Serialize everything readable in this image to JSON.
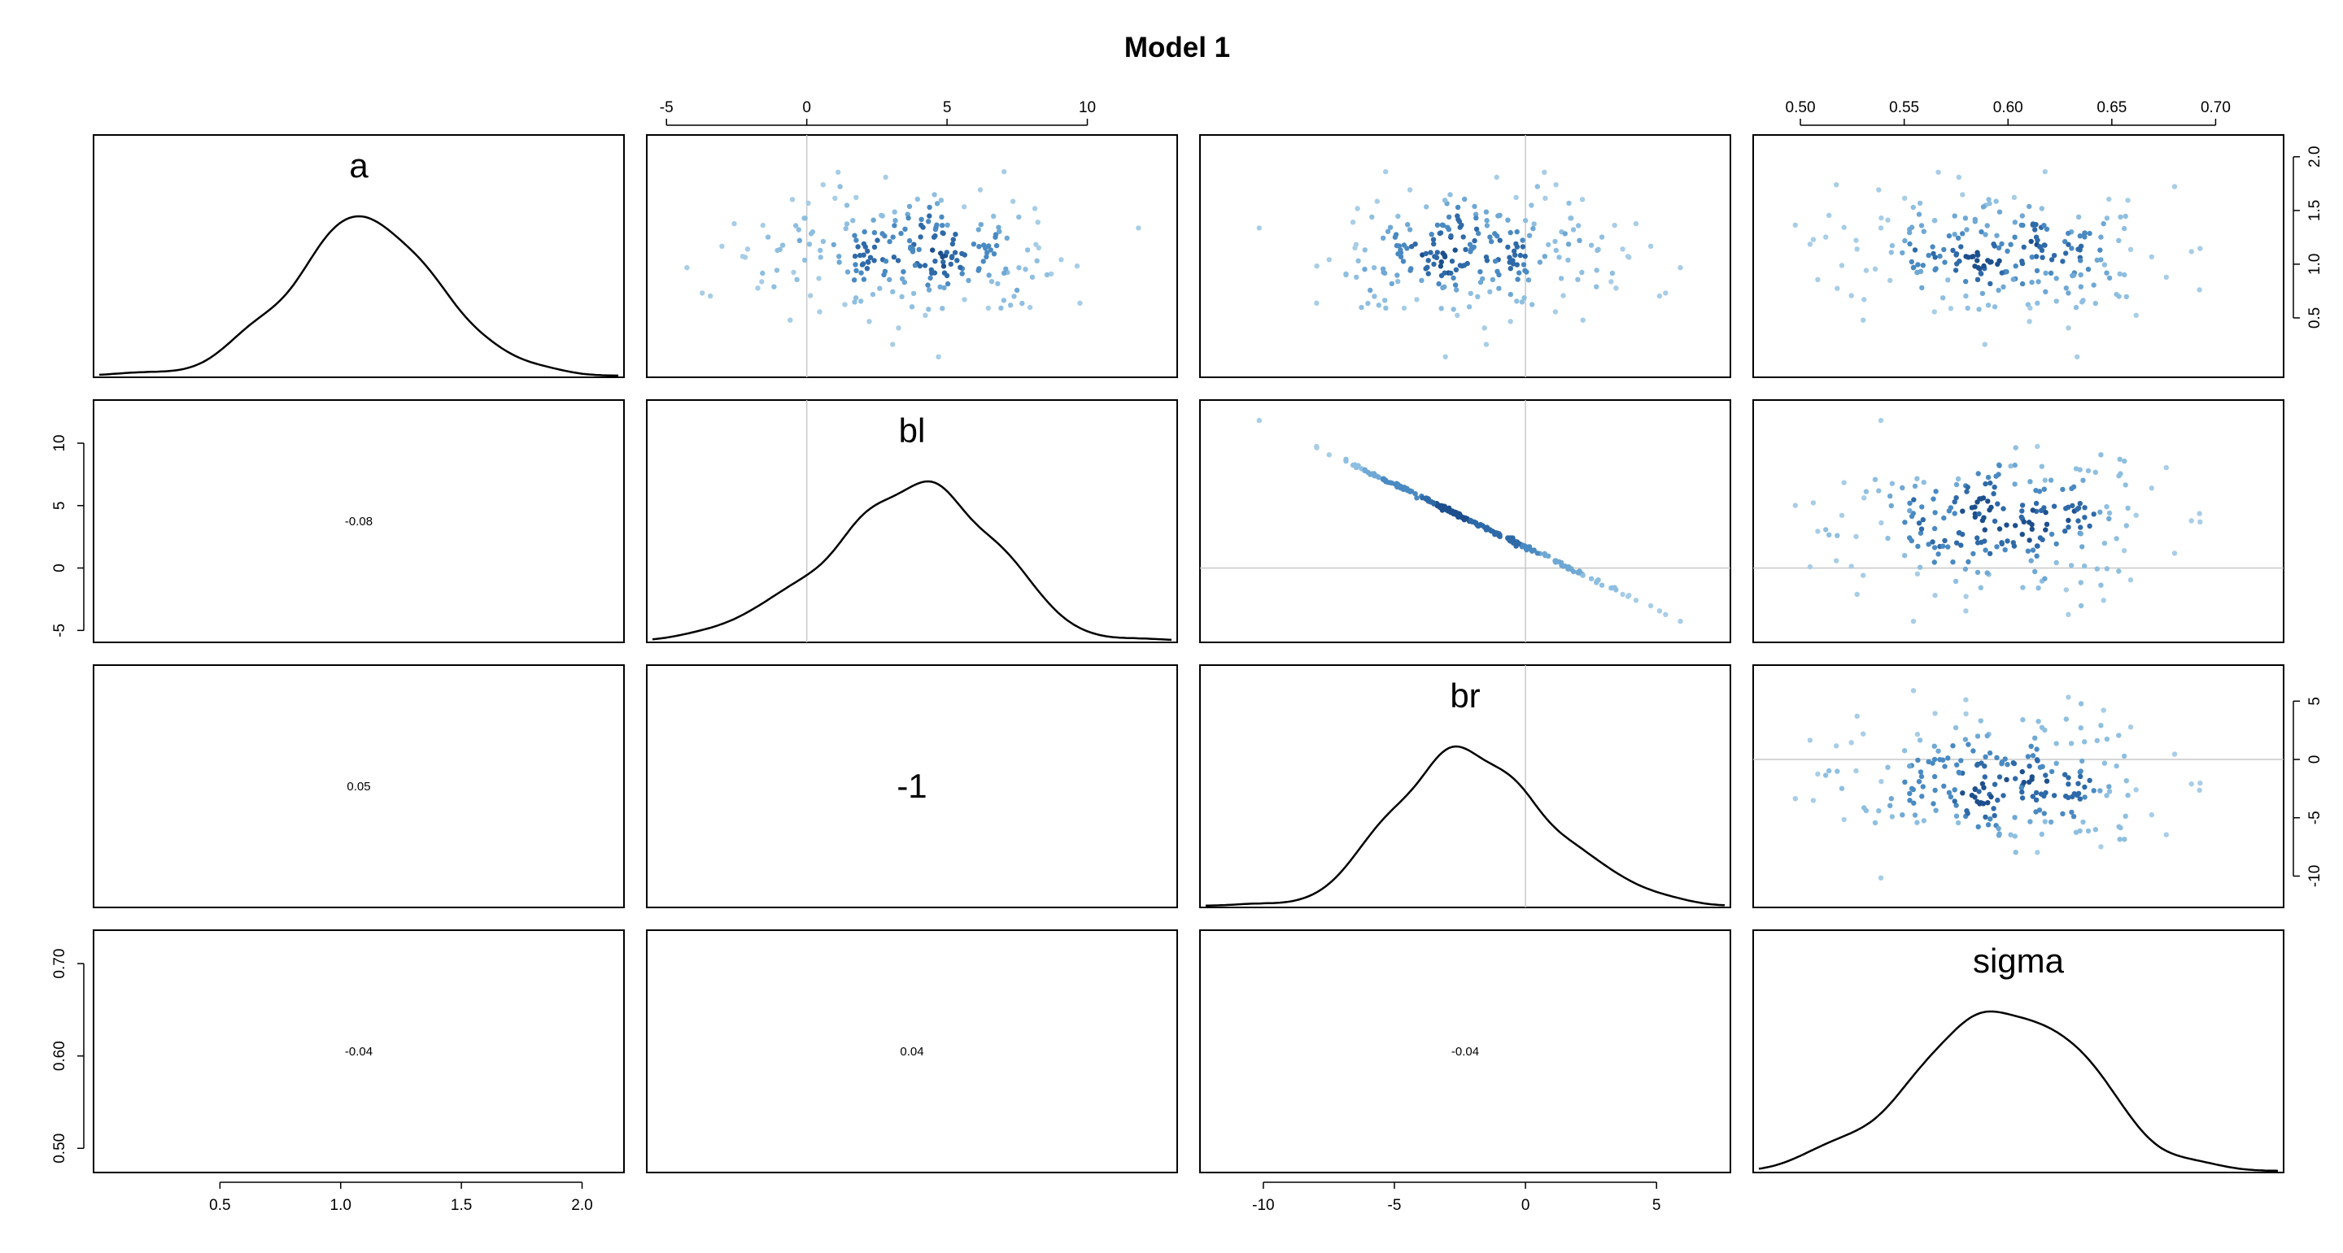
{
  "chart_data": {
    "type": "scatter",
    "title": "Model 1",
    "variables": [
      {
        "name": "a",
        "range": [
          0.0,
          2.15
        ],
        "ticks": [
          0.5,
          1.0,
          1.5,
          2.0
        ],
        "tick_labels": [
          "0.5",
          "1.0",
          "1.5",
          "2.0"
        ],
        "ref_line": null,
        "mean": 1.1,
        "sd": 0.29
      },
      {
        "name": "bl",
        "range": [
          -5.5,
          13.0
        ],
        "ticks": [
          -5,
          0,
          5,
          10
        ],
        "tick_labels": [
          "-5",
          "0",
          "5",
          "10"
        ],
        "ref_line": 0,
        "mean": 3.9,
        "sd": 2.6
      },
      {
        "name": "br",
        "range": [
          -12.2,
          7.6
        ],
        "ticks": [
          -10,
          -5,
          0,
          5
        ],
        "tick_labels": [
          "-10",
          "-5",
          "0",
          "5"
        ],
        "ref_line": 0,
        "mean": -2.2,
        "sd": 2.6
      },
      {
        "name": "sigma",
        "range": [
          0.48,
          0.73
        ],
        "ticks": [
          0.5,
          0.55,
          0.6,
          0.65,
          0.7
        ],
        "tick_labels": [
          "0.50",
          "0.55",
          "0.60",
          "0.65",
          "0.70"
        ],
        "ref_line": null,
        "mean": 0.597,
        "sd": 0.038
      }
    ],
    "y_tick_labels": {
      "a": [
        "0.5",
        "1.0",
        "1.5",
        "2.0"
      ],
      "bl": [
        "-5",
        "0",
        "5",
        "10"
      ],
      "br": [
        "-10",
        "-5",
        "0",
        "5"
      ],
      "sigma": [
        "0.50",
        "0.60",
        "0.70"
      ]
    },
    "sigma_y_ticks": [
      0.5,
      0.6,
      0.7
    ],
    "correlations": [
      {
        "row": 1,
        "col": 0,
        "text": "-0.08"
      },
      {
        "row": 2,
        "col": 0,
        "text": "0.05"
      },
      {
        "row": 2,
        "col": 1,
        "text": "-1"
      },
      {
        "row": 3,
        "col": 0,
        "text": "-0.04"
      },
      {
        "row": 3,
        "col": 1,
        "text": "0.04"
      },
      {
        "row": 3,
        "col": 2,
        "text": "-0.04"
      }
    ],
    "n_samples": 240,
    "point_colors": [
      "#a8cde6",
      "#8fbfe0",
      "#6fa8d4",
      "#4a8ac2",
      "#2f6aa8",
      "#1d4f8c"
    ],
    "grid": false
  }
}
